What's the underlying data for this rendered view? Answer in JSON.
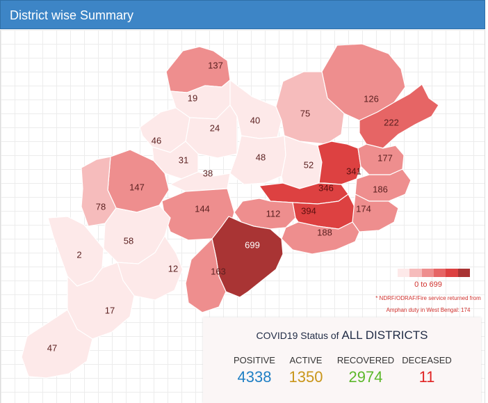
{
  "header": {
    "title": "District wise Summary"
  },
  "map": {
    "districts": [
      {
        "id": "d137",
        "label": "137",
        "value": 137
      },
      {
        "id": "d126",
        "label": "126",
        "value": 126
      },
      {
        "id": "d19",
        "label": "19",
        "value": 19
      },
      {
        "id": "d24",
        "label": "24",
        "value": 24
      },
      {
        "id": "d40",
        "label": "40",
        "value": 40
      },
      {
        "id": "d75",
        "label": "75",
        "value": 75
      },
      {
        "id": "d222",
        "label": "222",
        "value": 222
      },
      {
        "id": "d46",
        "label": "46",
        "value": 46
      },
      {
        "id": "d31",
        "label": "31",
        "value": 31
      },
      {
        "id": "d48",
        "label": "48",
        "value": 48
      },
      {
        "id": "d52",
        "label": "52",
        "value": 52
      },
      {
        "id": "d341",
        "label": "341",
        "value": 341
      },
      {
        "id": "d177",
        "label": "177",
        "value": 177
      },
      {
        "id": "d147",
        "label": "147",
        "value": 147
      },
      {
        "id": "d38",
        "label": "38",
        "value": 38
      },
      {
        "id": "d346",
        "label": "346",
        "value": 346
      },
      {
        "id": "d186",
        "label": "186",
        "value": 186
      },
      {
        "id": "d78",
        "label": "78",
        "value": 78
      },
      {
        "id": "d144",
        "label": "144",
        "value": 144
      },
      {
        "id": "d112",
        "label": "112",
        "value": 112
      },
      {
        "id": "d394",
        "label": "394",
        "value": 394
      },
      {
        "id": "d174",
        "label": "174",
        "value": 174
      },
      {
        "id": "d188",
        "label": "188",
        "value": 188
      },
      {
        "id": "d58",
        "label": "58",
        "value": 58
      },
      {
        "id": "d699",
        "label": "699",
        "value": 699
      },
      {
        "id": "d2",
        "label": "2",
        "value": 2
      },
      {
        "id": "d12",
        "label": "12",
        "value": 12
      },
      {
        "id": "d163",
        "label": "163",
        "value": 163
      },
      {
        "id": "d17",
        "label": "17",
        "value": 17
      },
      {
        "id": "d47",
        "label": "47",
        "value": 47
      }
    ],
    "color_scale": [
      "#fde9e9",
      "#f6bcbc",
      "#ee8e8e",
      "#e66565",
      "#dd4141",
      "#a93434"
    ],
    "legend_range": "0 to 699",
    "note_line1": "* NDRF/ODRAF/Fire service returned from",
    "note_line2": "Amphan duty in West Bengal: 174"
  },
  "status": {
    "title_prefix": "COVID19 Status of",
    "title_strong": "ALL DISTRICTS",
    "positive": {
      "label": "POSITIVE",
      "value": "4338",
      "color": "#1f7fc4"
    },
    "active": {
      "label": "ACTIVE",
      "value": "1350",
      "color": "#c9961a"
    },
    "recovered": {
      "label": "RECOVERED",
      "value": "2974",
      "color": "#5cb82b"
    },
    "deceased": {
      "label": "DECEASED",
      "value": "11",
      "color": "#e02323"
    }
  }
}
